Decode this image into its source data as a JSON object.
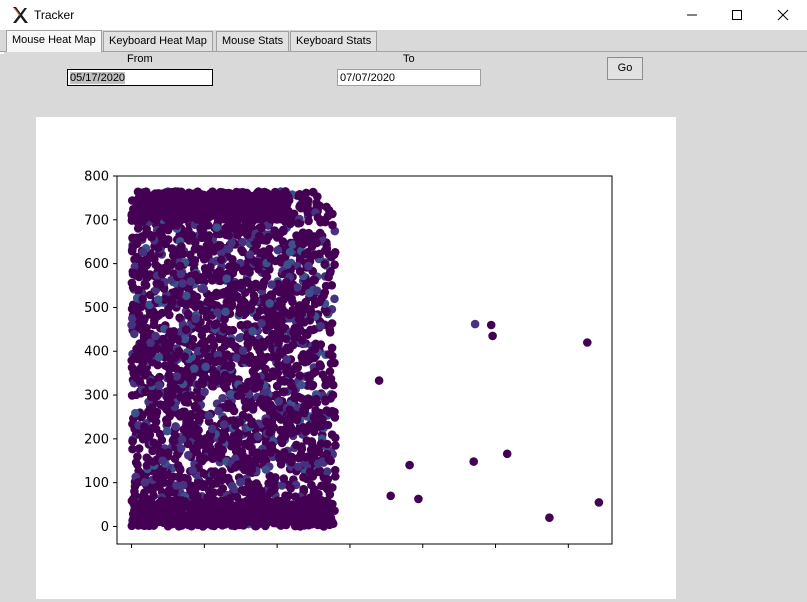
{
  "window": {
    "title": "Tracker",
    "icon": "x-app-icon"
  },
  "tabs": [
    {
      "label": "Mouse Heat Map",
      "active": true
    },
    {
      "label": "Keyboard Heat Map",
      "active": false
    },
    {
      "label": "Mouse Stats",
      "active": false
    },
    {
      "label": "Keyboard Stats",
      "active": false
    }
  ],
  "filters": {
    "from_label": "From",
    "from_value": "05/17/2020",
    "to_label": "To",
    "to_value": "07/07/2020",
    "go_label": "Go"
  },
  "colors": {
    "point_main": "#440154",
    "point_alt": "#3b518b",
    "point_mid": "#46327e"
  },
  "chart_data": {
    "type": "scatter",
    "title": "",
    "xlabel": "",
    "ylabel": "",
    "ylim": [
      -40,
      800
    ],
    "xlim": [
      -50,
      1650
    ],
    "yticks": [
      0,
      100,
      200,
      300,
      400,
      500,
      600,
      700,
      800
    ],
    "xticks": [
      0,
      250,
      500,
      750,
      1000,
      1250,
      1500
    ],
    "xtick_labels_visible": false,
    "dense_region": {
      "x_range": [
        0,
        700
      ],
      "y_range": [
        0,
        765
      ]
    },
    "points": [
      {
        "x": 850,
        "y": 333
      },
      {
        "x": 890,
        "y": 70
      },
      {
        "x": 955,
        "y": 140
      },
      {
        "x": 985,
        "y": 63
      },
      {
        "x": 1180,
        "y": 462
      },
      {
        "x": 1175,
        "y": 148
      },
      {
        "x": 1235,
        "y": 460
      },
      {
        "x": 1240,
        "y": 435
      },
      {
        "x": 1290,
        "y": 166
      },
      {
        "x": 1435,
        "y": 20
      },
      {
        "x": 1565,
        "y": 420
      },
      {
        "x": 1605,
        "y": 55
      },
      {
        "x": 700,
        "y": 185
      },
      {
        "x": 685,
        "y": 372
      },
      {
        "x": 680,
        "y": 260
      },
      {
        "x": 670,
        "y": 490
      },
      {
        "x": 665,
        "y": 630
      },
      {
        "x": 640,
        "y": 705
      },
      {
        "x": 575,
        "y": 755
      },
      {
        "x": 585,
        "y": 750
      },
      {
        "x": 600,
        "y": 655
      }
    ]
  }
}
